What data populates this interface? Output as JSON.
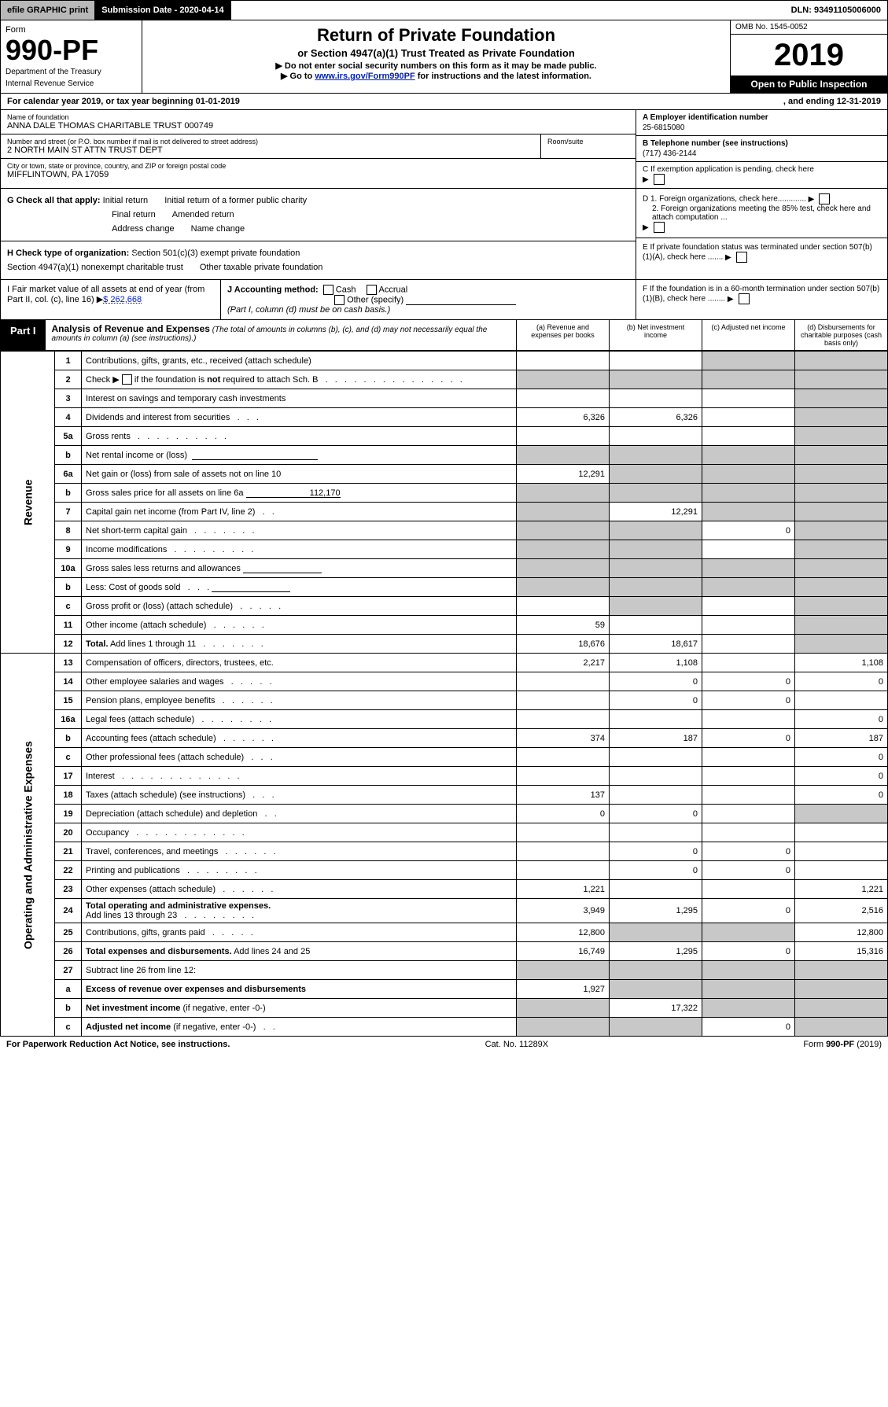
{
  "top": {
    "efile": "efile GRAPHIC print",
    "submission": "Submission Date - 2020-04-14",
    "dln": "DLN: 93491105006000"
  },
  "header": {
    "form_label": "Form",
    "form_number": "990-PF",
    "dept1": "Department of the Treasury",
    "dept2": "Internal Revenue Service",
    "title": "Return of Private Foundation",
    "subtitle": "or Section 4947(a)(1) Trust Treated as Private Foundation",
    "note1": "▶ Do not enter social security numbers on this form as it may be made public.",
    "note2_pre": "▶ Go to ",
    "note2_link": "www.irs.gov/Form990PF",
    "note2_post": " for instructions and the latest information.",
    "omb": "OMB No. 1545-0052",
    "year": "2019",
    "inspection": "Open to Public Inspection"
  },
  "calyear": {
    "left": "For calendar year 2019, or tax year beginning 01-01-2019",
    "right": ", and ending 12-31-2019"
  },
  "info": {
    "name_label": "Name of foundation",
    "name": "ANNA DALE THOMAS CHARITABLE TRUST 000749",
    "addr_label": "Number and street (or P.O. box number if mail is not delivered to street address)",
    "addr": "2 NORTH MAIN ST ATTN TRUST DEPT",
    "room_label": "Room/suite",
    "city_label": "City or town, state or province, country, and ZIP or foreign postal code",
    "city": "MIFFLINTOWN, PA  17059",
    "ein_label": "A Employer identification number",
    "ein": "25-6815080",
    "tel_label": "B Telephone number (see instructions)",
    "tel": "(717) 436-2144",
    "c_label": "C If exemption application is pending, check here",
    "d1": "D 1. Foreign organizations, check here.............",
    "d2": "2. Foreign organizations meeting the 85% test, check here and attach computation ...",
    "e": "E  If private foundation status was terminated under section 507(b)(1)(A), check here .......",
    "f": "F  If the foundation is in a 60-month termination under section 507(b)(1)(B), check here ........"
  },
  "g": {
    "label": "G Check all that apply:",
    "initial": "Initial return",
    "initial_former": "Initial return of a former public charity",
    "final": "Final return",
    "amended": "Amended return",
    "address": "Address change",
    "name": "Name change"
  },
  "h": {
    "label": "H Check type of organization:",
    "s501": "Section 501(c)(3) exempt private foundation",
    "s4947": "Section 4947(a)(1) nonexempt charitable trust",
    "other": "Other taxable private foundation"
  },
  "i": {
    "label": "I Fair market value of all assets at end of year (from Part II, col. (c), line 16)",
    "amount": "$  262,668"
  },
  "j": {
    "label": "J Accounting method:",
    "cash": "Cash",
    "accrual": "Accrual",
    "other": "Other (specify)",
    "note": "(Part I, column (d) must be on cash basis.)"
  },
  "part1": {
    "label": "Part I",
    "title": "Analysis of Revenue and Expenses",
    "note": "(The total of amounts in columns (b), (c), and (d) may not necessarily equal the amounts in column (a) (see instructions).)",
    "col_a": "(a)   Revenue and expenses per books",
    "col_b": "(b)  Net investment income",
    "col_c": "(c)  Adjusted net income",
    "col_d": "(d)  Disbursements for charitable purposes (cash basis only)"
  },
  "sections": {
    "revenue": "Revenue",
    "expenses": "Operating and Administrative Expenses"
  },
  "rows": [
    {
      "n": "1",
      "d": "s",
      "a": "",
      "b": "",
      "c": "s"
    },
    {
      "n": "2",
      "d": "s",
      "a": "s",
      "b": "s",
      "c": "s"
    },
    {
      "n": "3",
      "d": "s",
      "a": "",
      "b": "",
      "c": ""
    },
    {
      "n": "4",
      "d": "s",
      "a": "6,326",
      "b": "6,326",
      "c": ""
    },
    {
      "n": "5a",
      "d": "s",
      "a": "",
      "b": "",
      "c": ""
    },
    {
      "n": "b",
      "d": "s",
      "a": "s",
      "b": "s",
      "c": "s",
      "blank": true
    },
    {
      "n": "6a",
      "d": "s",
      "a": "12,291",
      "b": "s",
      "c": "s"
    },
    {
      "n": "b",
      "d": "s",
      "a": "s",
      "b": "s",
      "c": "s",
      "blank": true,
      "blankval": "112,170"
    },
    {
      "n": "7",
      "d": "s",
      "a": "s",
      "b": "12,291",
      "c": "s"
    },
    {
      "n": "8",
      "d": "s",
      "a": "s",
      "b": "s",
      "c": "0"
    },
    {
      "n": "9",
      "d": "s",
      "a": "s",
      "b": "s",
      "c": ""
    },
    {
      "n": "10a",
      "d": "s",
      "a": "s",
      "b": "s",
      "c": "s",
      "blank": true
    },
    {
      "n": "b",
      "d": "s",
      "a": "s",
      "b": "s",
      "c": "s",
      "blank": true
    },
    {
      "n": "c",
      "d": "s",
      "a": "",
      "b": "s",
      "c": ""
    },
    {
      "n": "11",
      "d": "s",
      "a": "59",
      "b": "",
      "c": ""
    },
    {
      "n": "12",
      "d": "s",
      "a": "18,676",
      "b": "18,617",
      "c": ""
    }
  ],
  "exp_rows": [
    {
      "n": "13",
      "d": "1,108",
      "a": "2,217",
      "b": "1,108",
      "c": ""
    },
    {
      "n": "14",
      "d": "0",
      "a": "",
      "b": "0",
      "c": "0"
    },
    {
      "n": "15",
      "d": "",
      "a": "",
      "b": "0",
      "c": "0"
    },
    {
      "n": "16a",
      "d": "0",
      "a": "",
      "b": "",
      "c": ""
    },
    {
      "n": "b",
      "d": "187",
      "a": "374",
      "b": "187",
      "c": "0"
    },
    {
      "n": "c",
      "d": "0",
      "a": "",
      "b": "",
      "c": ""
    },
    {
      "n": "17",
      "d": "0",
      "a": "",
      "b": "",
      "c": ""
    },
    {
      "n": "18",
      "d": "0",
      "a": "137",
      "b": "",
      "c": ""
    },
    {
      "n": "19",
      "d": "s",
      "a": "0",
      "b": "0",
      "c": ""
    },
    {
      "n": "20",
      "d": "",
      "a": "",
      "b": "",
      "c": ""
    },
    {
      "n": "21",
      "d": "",
      "a": "",
      "b": "0",
      "c": "0"
    },
    {
      "n": "22",
      "d": "",
      "a": "",
      "b": "0",
      "c": "0"
    },
    {
      "n": "23",
      "d": "1,221",
      "a": "1,221",
      "b": "",
      "c": ""
    },
    {
      "n": "24",
      "d": "2,516",
      "a": "3,949",
      "b": "1,295",
      "c": "0"
    },
    {
      "n": "25",
      "d": "12,800",
      "a": "12,800",
      "b": "s",
      "c": "s"
    },
    {
      "n": "26",
      "d": "15,316",
      "a": "16,749",
      "b": "1,295",
      "c": "0"
    },
    {
      "n": "27",
      "d": "s",
      "a": "s",
      "b": "s",
      "c": "s"
    },
    {
      "n": "a",
      "d": "s",
      "a": "1,927",
      "b": "s",
      "c": "s"
    },
    {
      "n": "b",
      "d": "s",
      "a": "s",
      "b": "17,322",
      "c": "s"
    },
    {
      "n": "c",
      "d": "s",
      "a": "s",
      "b": "s",
      "c": "0"
    }
  ],
  "footer": {
    "left": "For Paperwork Reduction Act Notice, see instructions.",
    "mid": "Cat. No. 11289X",
    "right": "Form 990-PF (2019)"
  }
}
